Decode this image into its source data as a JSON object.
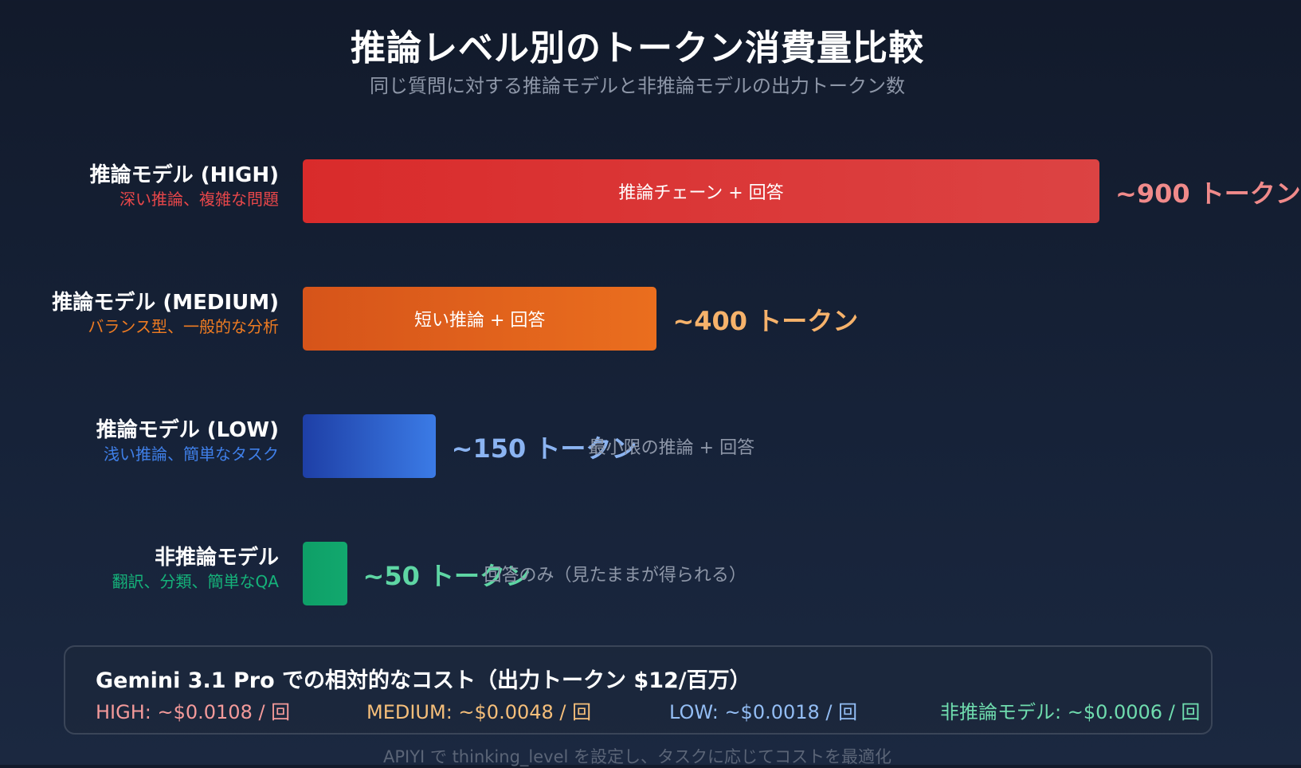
{
  "header": {
    "title": "推論レベル別のトークン消費量比較",
    "subtitle": "同じ質問に対する推論モデルと非推論モデルの出力トークン数"
  },
  "chart_data": {
    "type": "bar",
    "orientation": "horizontal",
    "unit": "トークン",
    "categories": [
      "推論モデル (HIGH)",
      "推論モデル (MEDIUM)",
      "推論モデル (LOW)",
      "非推論モデル"
    ],
    "values": [
      900,
      400,
      150,
      50
    ],
    "rows": [
      {
        "name": "推論モデル (HIGH)",
        "desc": "深い推論、複雑な問題",
        "value": 900,
        "value_label": "~900 トークン",
        "bar_text": "推論チェーン + 回答",
        "note": "",
        "color": "#d92b2b",
        "color_end": "#dc4343",
        "accent": "#f08a8a"
      },
      {
        "name": "推論モデル (MEDIUM)",
        "desc": "バランス型、一般的な分析",
        "value": 400,
        "value_label": "~400 トークン",
        "bar_text": "短い推論 + 回答",
        "note": "",
        "color": "#d6541a",
        "color_end": "#ea6e1e",
        "accent": "#f6b26b"
      },
      {
        "name": "推論モデル (LOW)",
        "desc": "浅い推論、簡単なタスク",
        "value": 150,
        "value_label": "~150 トークン",
        "bar_text": "",
        "note": "最小限の推論 + 回答",
        "color": "#1e3fa6",
        "color_end": "#3b7be6",
        "accent": "#8bb4f2"
      },
      {
        "name": "非推論モデル",
        "desc": "翻訳、分類、簡単なQA",
        "value": 50,
        "value_label": "~50 トークン",
        "bar_text": "",
        "note": "回答のみ（見たままが得られる）",
        "color": "#0e9f67",
        "color_end": "#12a86e",
        "accent": "#5ed6a4"
      }
    ]
  },
  "cost": {
    "title": "Gemini 3.1 Pro での相対的なコスト（出力トークン $12/百万）",
    "items": [
      {
        "label": "HIGH: ~$0.0108 / 回",
        "color": "#f49a9a"
      },
      {
        "label": "MEDIUM: ~$0.0048 / 回",
        "color": "#f6bf7a"
      },
      {
        "label": "LOW: ~$0.0018 / 回",
        "color": "#93bdf4"
      },
      {
        "label": "非推論モデル: ~$0.0006 / 回",
        "color": "#6fdcae"
      }
    ]
  },
  "footer": {
    "text": "APIYI で thinking_level を設定し、タスクに応じてコストを最適化"
  }
}
